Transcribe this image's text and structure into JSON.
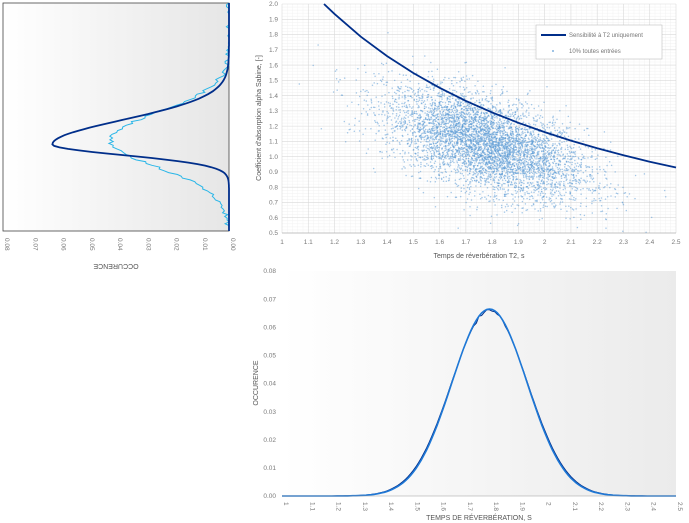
{
  "colors": {
    "dark_blue": "#002e8a",
    "light_blue": "#29b6e8",
    "scatter": "#5b9bd5",
    "grid": "#d9d9d9",
    "bg_grad_start": "#ffffff",
    "bg_grad_end": "#e9e9e9"
  },
  "chart_data": [
    {
      "id": "scatter",
      "type": "scatter",
      "xlabel": "Temps de réverbération T2, s",
      "ylabel": "Coefficient d'absorption alpha Sabine, [-]",
      "xlim": [
        1,
        2.5
      ],
      "ylim": [
        0.5,
        2.0
      ],
      "xticks": [
        "1",
        "1.1",
        "1.2",
        "1.3",
        "1.4",
        "1.5",
        "1.6",
        "1.7",
        "1.8",
        "1.9",
        "2",
        "2.1",
        "2.2",
        "2.3",
        "2.4",
        "2.5"
      ],
      "yticks": [
        "0.5",
        "0.6",
        "0.7",
        "0.8",
        "0.9",
        "1.0",
        "1.1",
        "1.2",
        "1.3",
        "1.4",
        "1.5",
        "1.6",
        "1.7",
        "1.8",
        "1.9",
        "2.0"
      ],
      "grid": true,
      "legend_position": "top-right",
      "series": [
        {
          "name": "Sensibilité à T2 uniquement",
          "kind": "line",
          "x": [
            1.16,
            1.2,
            1.3,
            1.4,
            1.5,
            1.6,
            1.7,
            1.8,
            1.9,
            2.0,
            2.1,
            2.2,
            2.3,
            2.4,
            2.5
          ],
          "y": [
            2.0,
            1.935,
            1.786,
            1.659,
            1.548,
            1.451,
            1.365,
            1.29,
            1.222,
            1.161,
            1.105,
            1.055,
            1.009,
            0.967,
            0.929
          ]
        },
        {
          "name": "10% toutes entrées",
          "kind": "scatter",
          "center_x": 1.78,
          "center_y": 1.08,
          "sd_x": 0.19,
          "sd_y": 0.18,
          "correlation": -0.55
        }
      ]
    },
    {
      "id": "side",
      "type": "line",
      "orientation": "rotated",
      "ylabel": "OCCURENCE",
      "yticks": [
        "0.08",
        "0.07",
        "0.06",
        "0.05",
        "0.04",
        "0.03",
        "0.02",
        "0.01",
        "0.00"
      ],
      "ylim": [
        0,
        0.08
      ],
      "alpha_range": [
        0.5,
        2.0
      ],
      "series": [
        {
          "name": "Sensibilité à T2 uniquement",
          "mode": 1.07,
          "peak": 0.0625,
          "sd_low": 0.07,
          "sd_high": 0.16
        },
        {
          "name": "10% toutes entrées",
          "mode": 1.1,
          "peak": 0.042,
          "sd": 0.18
        }
      ]
    },
    {
      "id": "bottom",
      "type": "line",
      "xlabel": "TEMPS DE RÉVERBÉRATION, S",
      "ylabel": "OCCURENCE",
      "xlim": [
        1,
        2.5
      ],
      "ylim": [
        0,
        0.08
      ],
      "xticks": [
        "1",
        "1.1",
        "1.2",
        "1.3",
        "1.4",
        "1.5",
        "1.6",
        "1.7",
        "1.8",
        "1.9",
        "2",
        "2.1",
        "2.2",
        "2.3",
        "2.4",
        "2.5"
      ],
      "yticks": [
        "0.00",
        "0.01",
        "0.02",
        "0.03",
        "0.04",
        "0.05",
        "0.06",
        "0.07",
        "0.08"
      ],
      "series": [
        {
          "name": "Sensibilité à T2 uniquement",
          "mode": 1.79,
          "peak": 0.0665,
          "sd": 0.143
        },
        {
          "name": "10% toutes entrées",
          "mode": 1.79,
          "peak": 0.0658,
          "sd": 0.146
        }
      ]
    }
  ]
}
